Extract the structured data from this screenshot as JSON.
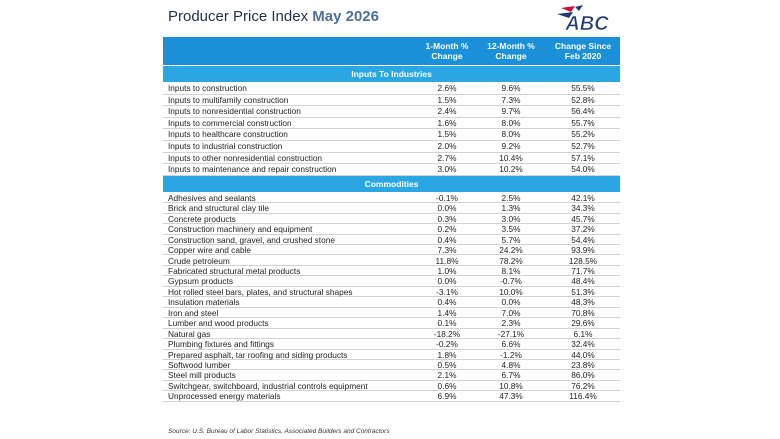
{
  "header": {
    "title": "Producer Price Index",
    "title_highlight": "May 2026",
    "logo_text": "ABC"
  },
  "table": {
    "columns": [
      "1-Month % Change",
      "12-Month % Change",
      "Change Since Feb 2020"
    ],
    "sections": [
      {
        "title": "Inputs To Industries",
        "rows": [
          [
            "Inputs to construction",
            "2.6%",
            "9.6%",
            "55.5%"
          ],
          [
            "Inputs to multifamily construction",
            "1.5%",
            "7.3%",
            "52.8%"
          ],
          [
            "Inputs to nonresidential construction",
            "2.4%",
            "9.7%",
            "56.4%"
          ],
          [
            "Inputs to commercial construction",
            "1.6%",
            "8.0%",
            "55.7%"
          ],
          [
            "Inputs to healthcare construction",
            "1.5%",
            "8.0%",
            "55.2%"
          ],
          [
            "Inputs to industrial construction",
            "2.0%",
            "9.2%",
            "52.7%"
          ],
          [
            "Inputs to other nonresidential construction",
            "2.7%",
            "10.4%",
            "57.1%"
          ],
          [
            "Inputs to maintenance and repair construction",
            "3.0%",
            "10.2%",
            "54.0%"
          ]
        ]
      },
      {
        "title": "Commodities",
        "rows": [
          [
            "Adhesives and sealants",
            "-0.1%",
            "2.5%",
            "42.1%"
          ],
          [
            "Brick and structural clay tile",
            "0.0%",
            "1.3%",
            "34.3%"
          ],
          [
            "Concrete products",
            "0.3%",
            "3.0%",
            "45.7%"
          ],
          [
            "Construction machinery and equipment",
            "0.2%",
            "3.5%",
            "37.2%"
          ],
          [
            "Construction sand, gravel, and crushed stone",
            "0.4%",
            "5.7%",
            "54.4%"
          ],
          [
            "Copper wire and cable",
            "7.3%",
            "24.2%",
            "93.9%"
          ],
          [
            "Crude petroleum",
            "11.8%",
            "78.2%",
            "128.5%"
          ],
          [
            "Fabricated structural metal products",
            "1.0%",
            "8.1%",
            "71.7%"
          ],
          [
            "Gypsum products",
            "0.0%",
            "-0.7%",
            "48.4%"
          ],
          [
            "Hot rolled steel bars, plates, and structural shapes",
            "-3.1%",
            "10.0%",
            "51.3%"
          ],
          [
            "Insulation materials",
            "0.4%",
            "0.0%",
            "48.3%"
          ],
          [
            "Iron and steel",
            "1.4%",
            "7.0%",
            "70.8%"
          ],
          [
            "Lumber and wood products",
            "0.1%",
            "2.3%",
            "29.6%"
          ],
          [
            "Natural gas",
            "-18.2%",
            "-27.1%",
            "6.1%"
          ],
          [
            "Plumbing fixtures and fittings",
            "-0.2%",
            "6.6%",
            "32.4%"
          ],
          [
            "Prepared asphalt, tar roofing and siding products",
            "1.8%",
            "-1.2%",
            "44.0%"
          ],
          [
            "Softwood lumber",
            "0.5%",
            "4.8%",
            "23.8%"
          ],
          [
            "Steel mill products",
            "2.1%",
            "6.7%",
            "86.0%"
          ],
          [
            "Switchgear, switchboard, industrial controls equipment",
            "0.6%",
            "10.8%",
            "76.2%"
          ],
          [
            "Unprocessed energy materials",
            "6.9%",
            "47.3%",
            "116.4%"
          ]
        ]
      }
    ]
  },
  "source": "Source: U.S. Bureau of Labor Statistics, Associated Builders and Contractors"
}
